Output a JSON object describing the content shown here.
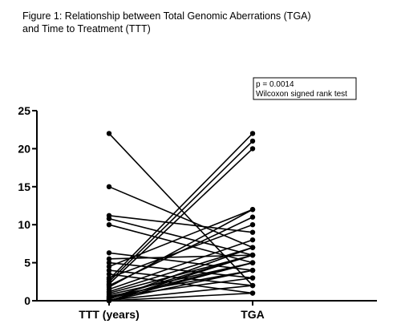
{
  "title_lines": [
    "Figure 1: Relationship between Total Genomic Aberrations (TGA)",
    "and Time to Treatment (TTT)"
  ],
  "annotation": {
    "line1": "p = 0.0014",
    "line2": "Wilcoxon signed rank test"
  },
  "chart_data": {
    "type": "line",
    "categories": [
      "TTT (years)",
      "TGA"
    ],
    "ylim": [
      0,
      25
    ],
    "yticks": [
      0,
      5,
      10,
      15,
      20,
      25
    ],
    "grid": false,
    "series": [
      {
        "values": [
          22,
          2
        ]
      },
      {
        "values": [
          15,
          7
        ]
      },
      {
        "values": [
          11.2,
          9
        ]
      },
      {
        "values": [
          10.8,
          6
        ]
      },
      {
        "values": [
          10,
          5
        ]
      },
      {
        "values": [
          6.3,
          4
        ]
      },
      {
        "values": [
          5.5,
          6
        ]
      },
      {
        "values": [
          5,
          3
        ]
      },
      {
        "values": [
          4.5,
          12
        ]
      },
      {
        "values": [
          4,
          2
        ]
      },
      {
        "values": [
          3.5,
          1
        ]
      },
      {
        "values": [
          3,
          10
        ]
      },
      {
        "values": [
          2.8,
          22
        ]
      },
      {
        "values": [
          2.5,
          21
        ]
      },
      {
        "values": [
          2.2,
          20
        ]
      },
      {
        "values": [
          2,
          11
        ]
      },
      {
        "values": [
          1.8,
          12
        ]
      },
      {
        "values": [
          1.5,
          8
        ]
      },
      {
        "values": [
          1.2,
          7
        ]
      },
      {
        "values": [
          1,
          6
        ]
      },
      {
        "values": [
          0.8,
          5
        ]
      },
      {
        "values": [
          0.6,
          4
        ]
      },
      {
        "values": [
          0.5,
          3
        ]
      },
      {
        "values": [
          0.4,
          6
        ]
      },
      {
        "values": [
          0.3,
          5
        ]
      },
      {
        "values": [
          0.2,
          7
        ]
      },
      {
        "values": [
          0.1,
          2
        ]
      },
      {
        "values": [
          0,
          6
        ]
      },
      {
        "values": [
          0,
          5
        ]
      },
      {
        "values": [
          0,
          4
        ]
      },
      {
        "values": [
          0,
          1
        ]
      }
    ]
  }
}
